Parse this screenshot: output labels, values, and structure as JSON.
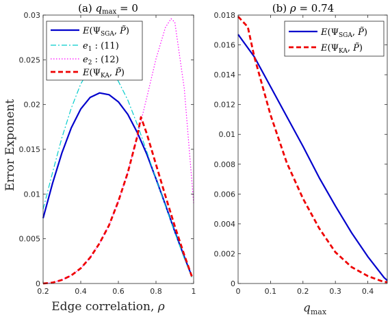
{
  "chart_data": [
    {
      "type": "line",
      "title": "(a)   q_max = 0",
      "xlabel": "Edge correlation, ρ",
      "ylabel": "Error Exponent",
      "xlim": [
        0.2,
        1.0
      ],
      "ylim": [
        0,
        0.03
      ],
      "xticks": [
        "0.2",
        "0.4",
        "0.6",
        "0.8",
        "1"
      ],
      "yticks": [
        "0",
        "0.005",
        "0.01",
        "0.015",
        "0.02",
        "0.025",
        "0.03"
      ],
      "legend": "top-left",
      "grid": false,
      "series": [
        {
          "name": "E(Ψ_SGA, P̃)",
          "color": "#0000cc",
          "style": "solid",
          "x": [
            0.2,
            0.25,
            0.3,
            0.35,
            0.4,
            0.45,
            0.5,
            0.55,
            0.6,
            0.65,
            0.7,
            0.75,
            0.8,
            0.85,
            0.9,
            0.95,
            0.99
          ],
          "values": [
            0.0073,
            0.0112,
            0.0146,
            0.0174,
            0.0195,
            0.0208,
            0.0213,
            0.0211,
            0.0203,
            0.0189,
            0.0169,
            0.0145,
            0.0117,
            0.0088,
            0.0058,
            0.003,
            0.0008
          ]
        },
        {
          "name": "e_1 : (11)",
          "color": "#00cccc",
          "style": "dashdot",
          "x": [
            0.2,
            0.25,
            0.3,
            0.35,
            0.4,
            0.45,
            0.5,
            0.55,
            0.6,
            0.65,
            0.7,
            0.75,
            0.8,
            0.85,
            0.9,
            0.95,
            0.99
          ],
          "values": [
            0.0083,
            0.0124,
            0.0163,
            0.0196,
            0.0223,
            0.0241,
            0.0247,
            0.0241,
            0.0226,
            0.0205,
            0.0178,
            0.0148,
            0.0117,
            0.0087,
            0.0057,
            0.0028,
            0.0007
          ]
        },
        {
          "name": "e_2 : (12)",
          "color": "#ff00ff",
          "style": "dotted",
          "x": [
            0.2,
            0.25,
            0.3,
            0.35,
            0.4,
            0.45,
            0.5,
            0.55,
            0.6,
            0.65,
            0.7,
            0.75,
            0.8,
            0.85,
            0.88,
            0.9,
            0.95,
            1.0
          ],
          "values": [
            0.0,
            0.0001,
            0.0004,
            0.0009,
            0.0017,
            0.0029,
            0.0045,
            0.0065,
            0.0092,
            0.0124,
            0.0164,
            0.0207,
            0.0251,
            0.0286,
            0.0296,
            0.0292,
            0.0218,
            0.009
          ]
        },
        {
          "name": "E(Ψ_KA, P̃)",
          "color": "#ee0000",
          "style": "dashed",
          "x": [
            0.2,
            0.25,
            0.3,
            0.35,
            0.4,
            0.45,
            0.5,
            0.55,
            0.6,
            0.65,
            0.7,
            0.72,
            0.75,
            0.8,
            0.85,
            0.9,
            0.95,
            0.99
          ],
          "values": [
            0.0,
            0.0001,
            0.0004,
            0.0009,
            0.0017,
            0.0029,
            0.0045,
            0.0065,
            0.0092,
            0.0124,
            0.0164,
            0.0186,
            0.0168,
            0.0133,
            0.0098,
            0.0064,
            0.0032,
            0.0008
          ]
        }
      ]
    },
    {
      "type": "line",
      "title": "(b)   ρ = 0.74",
      "xlabel": "q_max",
      "ylabel": "",
      "xlim": [
        0,
        0.46
      ],
      "ylim": [
        0,
        0.018
      ],
      "xticks": [
        "0",
        "0.1",
        "0.2",
        "0.3",
        "0.4"
      ],
      "yticks": [
        "0",
        "0.002",
        "0.004",
        "0.006",
        "0.008",
        "0.01",
        "0.012",
        "0.014",
        "0.016",
        "0.018"
      ],
      "legend": "top-right",
      "grid": false,
      "series": [
        {
          "name": "E(Ψ_SGA, P̃)",
          "color": "#0000cc",
          "style": "solid",
          "x": [
            0.0,
            0.05,
            0.1,
            0.15,
            0.2,
            0.25,
            0.3,
            0.35,
            0.4,
            0.45,
            0.46
          ],
          "values": [
            0.0167,
            0.0152,
            0.0132,
            0.0112,
            0.0092,
            0.0071,
            0.0052,
            0.0034,
            0.0018,
            0.0004,
            0.0002
          ]
        },
        {
          "name": "E(Ψ_KA, P̃)",
          "color": "#ee0000",
          "style": "dashed",
          "x": [
            0.0,
            0.03,
            0.05,
            0.1,
            0.15,
            0.2,
            0.25,
            0.3,
            0.35,
            0.4,
            0.45,
            0.46
          ],
          "values": [
            0.0179,
            0.0172,
            0.0152,
            0.0113,
            0.0081,
            0.0057,
            0.0037,
            0.0021,
            0.0011,
            0.0005,
            0.0001,
            0.0001
          ]
        }
      ]
    }
  ]
}
